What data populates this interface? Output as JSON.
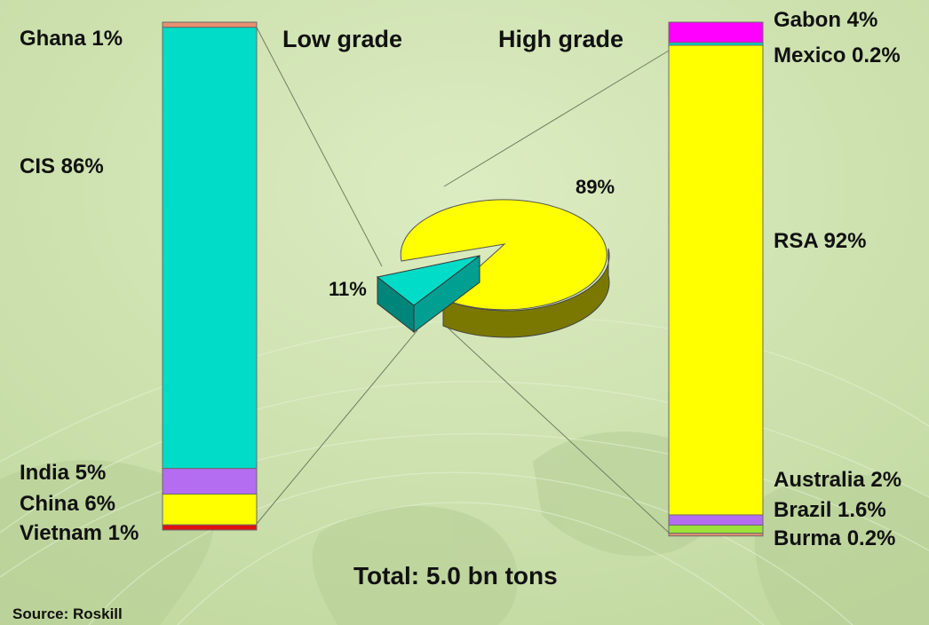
{
  "total_label": "Total: 5.0 bn tons",
  "source_label": "Source: Roskill",
  "colors": {
    "background": "#d0e4b1",
    "cyan": "#00dcc8",
    "yellow": "#ffff00",
    "purple": "#b46cf0",
    "magenta": "#ff00ff",
    "red": "#e01010",
    "salmon": "#e89070",
    "green": "#9ce23a"
  },
  "chart_data": [
    {
      "type": "pie",
      "title": "Total: 5.0 bn tons",
      "slices": [
        {
          "label": "89%",
          "value": 89,
          "category": "High grade",
          "color": "#ffff00"
        },
        {
          "label": "11%",
          "value": 11,
          "category": "Low grade",
          "color": "#00dcc8"
        }
      ]
    },
    {
      "type": "bar",
      "stacked": true,
      "title": "Low grade",
      "categories": [
        "Ghana",
        "CIS",
        "India",
        "China",
        "Vietnam"
      ],
      "values": [
        1,
        86,
        5,
        6,
        1
      ],
      "labels": [
        "Ghana 1%",
        "CIS 86%",
        "India 5%",
        "China 6%",
        "Vietnam 1%"
      ],
      "colors": [
        "#e89070",
        "#00dcc8",
        "#b46cf0",
        "#ffff00",
        "#e01010"
      ]
    },
    {
      "type": "bar",
      "stacked": true,
      "title": "High grade",
      "categories": [
        "Gabon",
        "Mexico",
        "RSA",
        "Australia",
        "Brazil",
        "Burma"
      ],
      "values": [
        4,
        0.2,
        92,
        2,
        1.6,
        0.2
      ],
      "labels": [
        "Gabon 4%",
        "Mexico 0.2%",
        "RSA 92%",
        "Australia 2%",
        "Brazil 1.6%",
        "Burma 0.2%"
      ],
      "colors": [
        "#ff00ff",
        "#00dcc8",
        "#ffff00",
        "#b46cf0",
        "#9ce23a",
        "#e89070"
      ]
    }
  ]
}
